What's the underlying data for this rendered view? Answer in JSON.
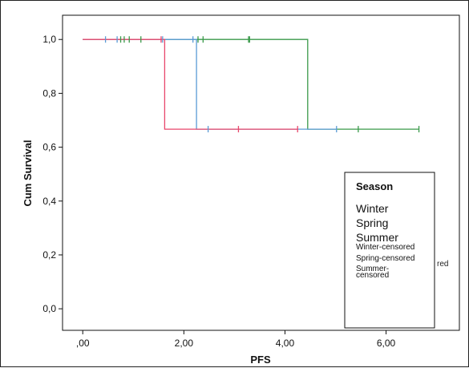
{
  "chart_data": {
    "type": "line",
    "xlabel": "PFS",
    "ylabel": "Cum Survival",
    "xlim": [
      -0.4,
      7.45
    ],
    "ylim": [
      -0.08,
      1.09
    ],
    "x_ticks": [
      0,
      2,
      4,
      6
    ],
    "x_tick_labels": [
      ",00",
      "2,00",
      "4,00",
      "6,00"
    ],
    "y_ticks": [
      0,
      0.2,
      0.4,
      0.6,
      0.8,
      1.0
    ],
    "y_tick_labels": [
      "0,0",
      "0,2",
      "0,4",
      "0,6",
      "0,8",
      "1,0"
    ],
    "grid": false,
    "legend": {
      "title": "Season",
      "entries": [
        "Winter",
        "Spring",
        "Summer"
      ],
      "censored_entries": [
        "Winter-censored",
        "Spring-censored",
        "Summer-\ncensored"
      ],
      "overflow_fragment": "red",
      "placement": "bottom-right"
    },
    "series": [
      {
        "color": "#e8476b",
        "steps": [
          [
            0,
            1.0
          ],
          [
            1.62,
            1.0
          ],
          [
            1.62,
            0.667
          ],
          [
            4.25,
            0.667
          ]
        ],
        "censored": [
          1.55,
          3.08,
          4.25
        ]
      },
      {
        "color": "#5b9bd5",
        "steps": [
          [
            0,
            1.0
          ],
          [
            2.25,
            1.0
          ],
          [
            2.25,
            0.667
          ],
          [
            5.02,
            0.667
          ]
        ],
        "censored": [
          0.45,
          0.68,
          1.58,
          2.18,
          2.48,
          5.02
        ]
      },
      {
        "color": "#3a9a4a",
        "steps": [
          [
            0,
            1.0
          ],
          [
            4.45,
            1.0
          ],
          [
            4.45,
            0.667
          ],
          [
            6.65,
            0.667
          ]
        ],
        "censored": [
          0.75,
          0.82,
          0.92,
          1.15,
          2.28,
          2.38,
          3.28,
          3.3,
          5.45,
          6.65
        ]
      }
    ]
  }
}
